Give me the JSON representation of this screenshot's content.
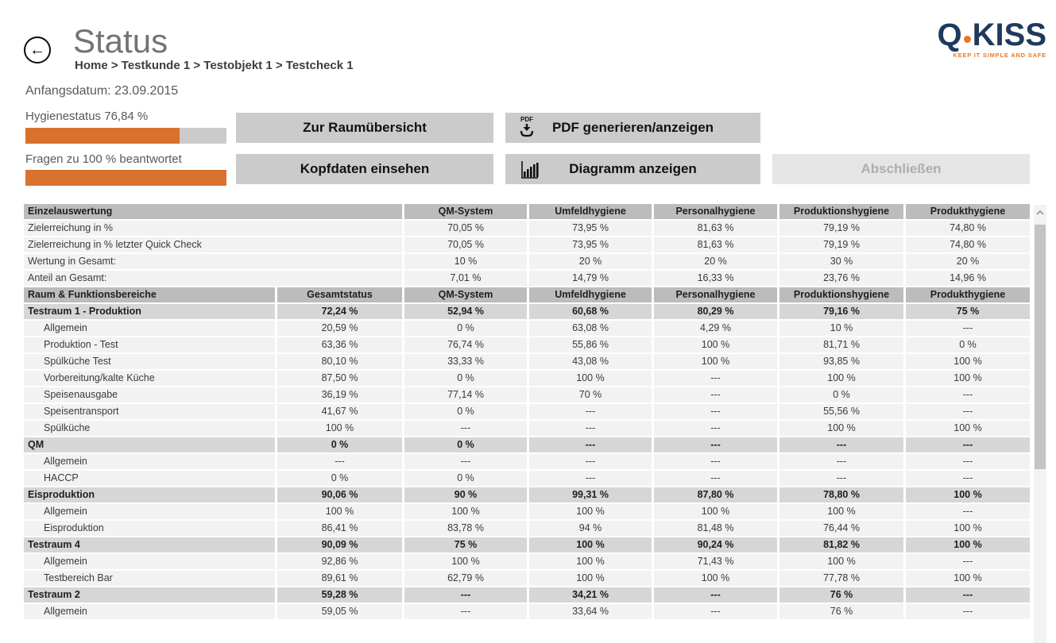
{
  "header": {
    "title": "Status",
    "back_icon": "←",
    "breadcrumb": "Home > Testkunde 1 > Testobjekt 1 > Testcheck 1",
    "start_date": "Anfangsdatum: 23.09.2015",
    "logo": {
      "q": "Q",
      "name": "KISS",
      "tagline": "KEEP IT SIMPLE AND SAFE"
    }
  },
  "progress": {
    "hygiene": {
      "label": "Hygienestatus 76,84 %",
      "percent": 76.84
    },
    "questions": {
      "label": "Fragen zu 100 % beantwortet",
      "percent": 100
    }
  },
  "buttons": {
    "room_overview": "Zur Raumübersicht",
    "head_data": "Kopfdaten einsehen",
    "pdf": "PDF generieren/anzeigen",
    "pdf_icon_label": "PDF",
    "diagram": "Diagramm anzeigen",
    "finish": "Abschließen"
  },
  "colors": {
    "accent_orange": "#D9722D",
    "progress_track_gray": "#CBCBCB",
    "logo_navy": "#1E3A5E",
    "logo_orange": "#E87722",
    "table_header_gray": "#BCBCBC",
    "table_group_gray": "#D6D6D6",
    "table_row_gray": "#F2F2F2",
    "button_gray": "#CBCBCB"
  },
  "table": {
    "sections": [
      {
        "name": "einzelauswertung",
        "label_span": 2,
        "header": {
          "label": "Einzelauswertung",
          "columns": [
            "QM-System",
            "Umfeldhygiene",
            "Personalhygiene",
            "Produktionshygiene",
            "Produkthygiene"
          ]
        },
        "rows": [
          {
            "label": "Zielerreichung in %",
            "type": "plain",
            "values": [
              "70,05 %",
              "73,95 %",
              "81,63 %",
              "79,19 %",
              "74,80 %"
            ]
          },
          {
            "label": "Zielerreichung in % letzter Quick Check",
            "type": "plain",
            "values": [
              "70,05 %",
              "73,95 %",
              "81,63 %",
              "79,19 %",
              "74,80 %"
            ]
          },
          {
            "label": "Wertung in Gesamt:",
            "type": "plain",
            "values": [
              "10 %",
              "20 %",
              "20 %",
              "30 %",
              "20 %"
            ]
          },
          {
            "label": "Anteil an Gesamt:",
            "type": "plain",
            "values": [
              "7,01 %",
              "14,79 %",
              "16,33 %",
              "23,76 %",
              "14,96 %"
            ]
          }
        ]
      },
      {
        "name": "raum-funktionsbereiche",
        "label_span": 1,
        "header": {
          "label": "Raum & Funktionsbereiche",
          "columns": [
            "Gesamtstatus",
            "QM-System",
            "Umfeldhygiene",
            "Personalhygiene",
            "Produktionshygiene",
            "Produkthygiene"
          ]
        },
        "rows": [
          {
            "label": "Testraum 1 - Produktion",
            "type": "group",
            "values": [
              "72,24 %",
              "52,94 %",
              "60,68 %",
              "80,29 %",
              "79,16 %",
              "75 %"
            ]
          },
          {
            "label": "Allgemein",
            "type": "sub",
            "values": [
              "20,59 %",
              "0 %",
              "63,08 %",
              "4,29 %",
              "10 %",
              "---"
            ]
          },
          {
            "label": "Produktion - Test",
            "type": "sub",
            "values": [
              "63,36 %",
              "76,74 %",
              "55,86 %",
              "100 %",
              "81,71 %",
              "0 %"
            ]
          },
          {
            "label": "Spülküche Test",
            "type": "sub",
            "values": [
              "80,10 %",
              "33,33 %",
              "43,08 %",
              "100 %",
              "93,85 %",
              "100 %"
            ]
          },
          {
            "label": "Vorbereitung/kalte Küche",
            "type": "sub",
            "values": [
              "87,50 %",
              "0 %",
              "100 %",
              "---",
              "100 %",
              "100 %"
            ]
          },
          {
            "label": "Speisenausgabe",
            "type": "sub",
            "values": [
              "36,19 %",
              "77,14 %",
              "70 %",
              "---",
              "0 %",
              "---"
            ]
          },
          {
            "label": "Speisentransport",
            "type": "sub",
            "values": [
              "41,67 %",
              "0 %",
              "---",
              "---",
              "55,56 %",
              "---"
            ]
          },
          {
            "label": "Spülküche",
            "type": "sub",
            "values": [
              "100 %",
              "---",
              "---",
              "---",
              "100 %",
              "100 %"
            ]
          },
          {
            "label": "QM",
            "type": "group",
            "values": [
              "0 %",
              "0 %",
              "---",
              "---",
              "---",
              "---"
            ]
          },
          {
            "label": "Allgemein",
            "type": "sub",
            "values": [
              "---",
              "---",
              "---",
              "---",
              "---",
              "---"
            ]
          },
          {
            "label": "HACCP",
            "type": "sub",
            "values": [
              "0 %",
              "0 %",
              "---",
              "---",
              "---",
              "---"
            ]
          },
          {
            "label": "Eisproduktion",
            "type": "group",
            "values": [
              "90,06 %",
              "90 %",
              "99,31 %",
              "87,80 %",
              "78,80 %",
              "100 %"
            ]
          },
          {
            "label": "Allgemein",
            "type": "sub",
            "values": [
              "100 %",
              "100 %",
              "100 %",
              "100 %",
              "100 %",
              "---"
            ]
          },
          {
            "label": "Eisproduktion",
            "type": "sub",
            "values": [
              "86,41 %",
              "83,78 %",
              "94 %",
              "81,48 %",
              "76,44 %",
              "100 %"
            ]
          },
          {
            "label": "Testraum 4",
            "type": "group",
            "values": [
              "90,09 %",
              "75 %",
              "100 %",
              "90,24 %",
              "81,82 %",
              "100 %"
            ]
          },
          {
            "label": "Allgemein",
            "type": "sub",
            "values": [
              "92,86 %",
              "100 %",
              "100 %",
              "71,43 %",
              "100 %",
              "---"
            ]
          },
          {
            "label": "Testbereich Bar",
            "type": "sub",
            "values": [
              "89,61 %",
              "62,79 %",
              "100 %",
              "100 %",
              "77,78 %",
              "100 %"
            ]
          },
          {
            "label": "Testraum 2",
            "type": "group",
            "values": [
              "59,28 %",
              "---",
              "34,21 %",
              "---",
              "76 %",
              "---"
            ]
          },
          {
            "label": "Allgemein",
            "type": "sub",
            "values": [
              "59,05 %",
              "---",
              "33,64 %",
              "---",
              "76 %",
              "---"
            ]
          }
        ]
      }
    ]
  }
}
